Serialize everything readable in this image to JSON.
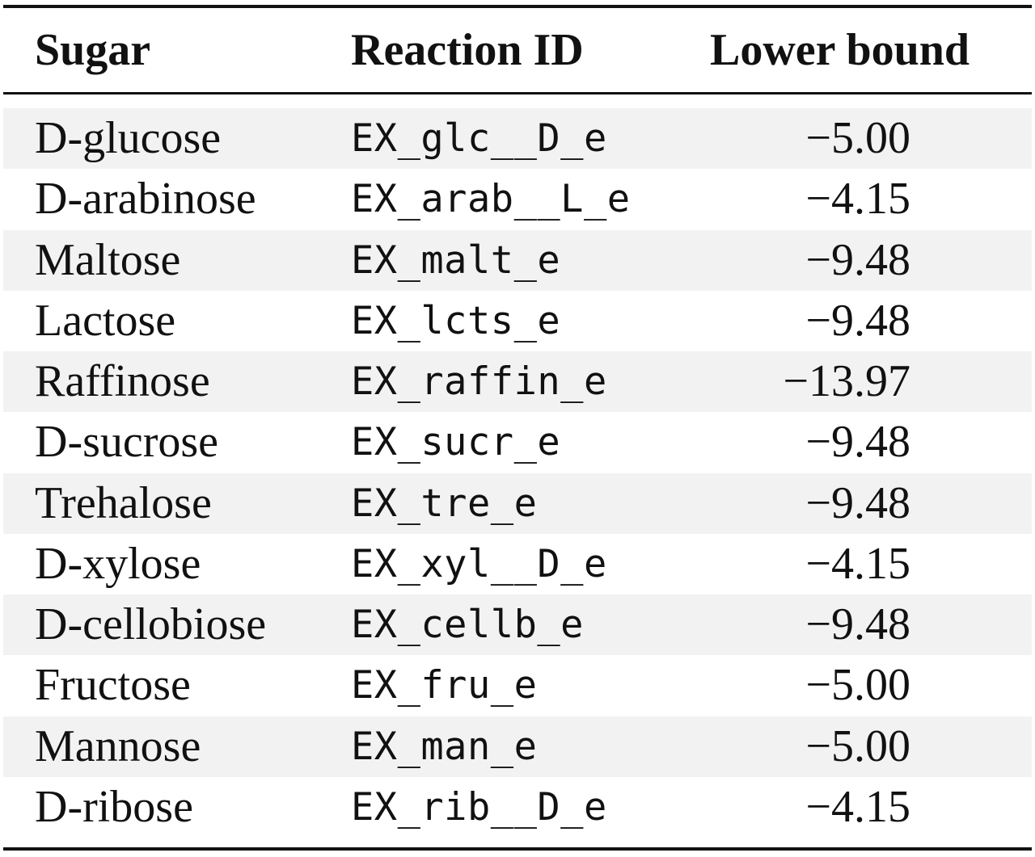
{
  "table": {
    "headers": {
      "sugar": "Sugar",
      "reaction_id": "Reaction ID",
      "lower_bound": "Lower bound"
    },
    "rows": [
      {
        "sugar": "D-glucose",
        "reaction_id": "EX_glc__D_e",
        "lower_bound": "−5.00",
        "shaded": true
      },
      {
        "sugar": "D-arabinose",
        "reaction_id": "EX_arab__L_e",
        "lower_bound": "−4.15",
        "shaded": false
      },
      {
        "sugar": "Maltose",
        "reaction_id": "EX_malt_e",
        "lower_bound": "−9.48",
        "shaded": true
      },
      {
        "sugar": "Lactose",
        "reaction_id": "EX_lcts_e",
        "lower_bound": "−9.48",
        "shaded": false
      },
      {
        "sugar": "Raffinose",
        "reaction_id": "EX_raffin_e",
        "lower_bound": "−13.97",
        "shaded": true
      },
      {
        "sugar": "D-sucrose",
        "reaction_id": "EX_sucr_e",
        "lower_bound": "−9.48",
        "shaded": false
      },
      {
        "sugar": "Trehalose",
        "reaction_id": "EX_tre_e",
        "lower_bound": "−9.48",
        "shaded": true
      },
      {
        "sugar": "D-xylose",
        "reaction_id": "EX_xyl__D_e",
        "lower_bound": "−4.15",
        "shaded": false
      },
      {
        "sugar": "D-cellobiose",
        "reaction_id": "EX_cellb_e",
        "lower_bound": "−9.48",
        "shaded": true
      },
      {
        "sugar": "Fructose",
        "reaction_id": "EX_fru_e",
        "lower_bound": "−5.00",
        "shaded": false
      },
      {
        "sugar": "Mannose",
        "reaction_id": "EX_man_e",
        "lower_bound": "−5.00",
        "shaded": true
      },
      {
        "sugar": "D-ribose",
        "reaction_id": "EX_rib__D_e",
        "lower_bound": "−4.15",
        "shaded": false
      }
    ]
  }
}
